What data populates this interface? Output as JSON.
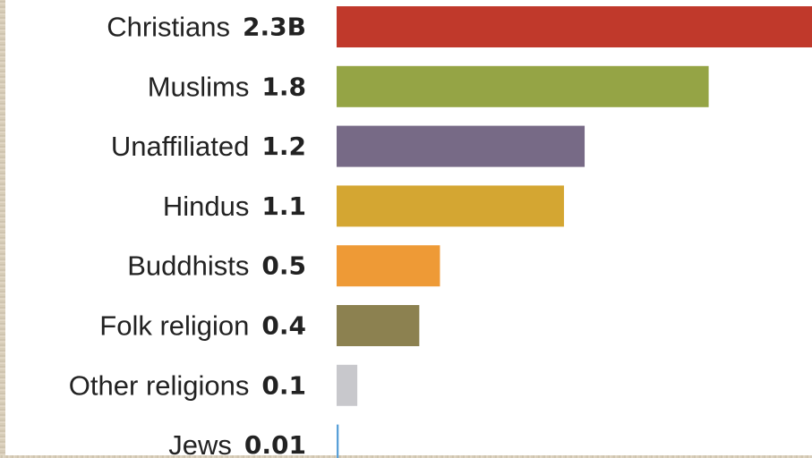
{
  "chart_data": {
    "type": "bar",
    "orientation": "horizontal",
    "categories": [
      "Christians",
      "Muslims",
      "Unaffiliated",
      "Hindus",
      "Buddhists",
      "Folk religion",
      "Other religions",
      "Jews"
    ],
    "values": [
      2.3,
      1.8,
      1.2,
      1.1,
      0.5,
      0.4,
      0.1,
      0.01
    ],
    "value_labels": [
      "2.3B",
      "1.8",
      "1.2",
      "1.1",
      "0.5",
      "0.4",
      "0.1",
      "0.01"
    ],
    "colors": [
      "#c0392b",
      "#95a445",
      "#776a86",
      "#d4a632",
      "#ee9a36",
      "#8c8150",
      "#c8c8cc",
      "#5aa0d8"
    ],
    "title": "",
    "xlabel": "",
    "ylabel": "",
    "grid": false,
    "legend": "none"
  }
}
